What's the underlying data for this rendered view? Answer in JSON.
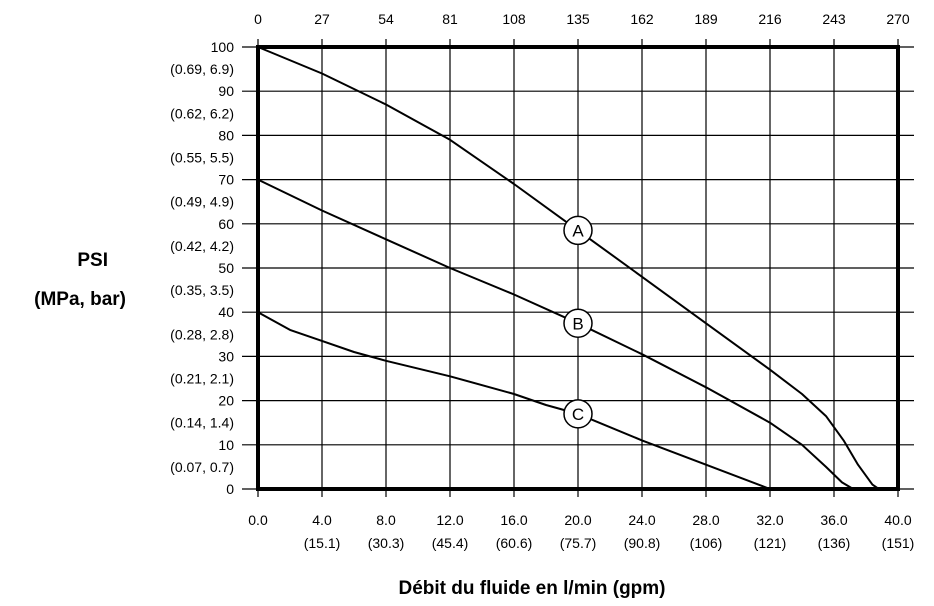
{
  "chart_data": {
    "type": "line",
    "title": "",
    "xlabel": "Débit du fluide en l/min (gpm)",
    "ylabel_line1": "PSI",
    "ylabel_line2": "(MPa, bar)",
    "xlim": [
      0,
      40
    ],
    "ylim": [
      0,
      100
    ],
    "grid": true,
    "x_ticks": [
      0,
      4,
      8,
      12,
      16,
      20,
      24,
      28,
      32,
      36,
      40
    ],
    "x_tick_labels": [
      "0.0",
      "4.0",
      "8.0",
      "12.0",
      "16.0",
      "20.0",
      "24.0",
      "28.0",
      "32.0",
      "36.0",
      "40.0"
    ],
    "x_tick_sublabels": [
      "",
      "(15.1)",
      "(30.3)",
      "(45.4)",
      "(60.6)",
      "(75.7)",
      "(90.8)",
      "(106)",
      "(121)",
      "(136)",
      "(151)"
    ],
    "top_axis_labels": [
      "0",
      "27",
      "54",
      "81",
      "108",
      "135",
      "162",
      "189",
      "216",
      "243",
      "270"
    ],
    "y_ticks": [
      0,
      10,
      20,
      30,
      40,
      50,
      60,
      70,
      80,
      90,
      100
    ],
    "y_tick_labels": [
      "0",
      "10",
      "20",
      "30",
      "40",
      "50",
      "60",
      "70",
      "80",
      "90",
      "100"
    ],
    "y_sub_labels": [
      {
        "y": 5,
        "text": "(0.07, 0.7)"
      },
      {
        "y": 15,
        "text": "(0.14, 1.4)"
      },
      {
        "y": 25,
        "text": "(0.21, 2.1)"
      },
      {
        "y": 35,
        "text": "(0.28, 2.8)"
      },
      {
        "y": 45,
        "text": "(0.35, 3.5)"
      },
      {
        "y": 55,
        "text": "(0.42, 4.2)"
      },
      {
        "y": 65,
        "text": "(0.49, 4.9)"
      },
      {
        "y": 75,
        "text": "(0.55, 5.5)"
      },
      {
        "y": 85,
        "text": "(0.62, 6.2)"
      },
      {
        "y": 95,
        "text": "(0.69, 6.9)"
      }
    ],
    "series": [
      {
        "name": "A",
        "label_at": [
          20,
          58.5
        ],
        "x": [
          0,
          4,
          8,
          12,
          16,
          20,
          24,
          28,
          32,
          34,
          35.5,
          36.6,
          37.5,
          38.4,
          38.8
        ],
        "y": [
          100,
          94,
          87,
          79,
          69,
          58.5,
          48,
          37.5,
          27,
          21.5,
          16.5,
          11,
          5.5,
          1,
          0
        ]
      },
      {
        "name": "B",
        "label_at": [
          20,
          37.5
        ],
        "x": [
          0,
          4,
          8,
          12,
          16,
          20,
          24,
          28,
          32,
          34,
          35.5,
          36.5,
          37.2
        ],
        "y": [
          70,
          63,
          56.5,
          50,
          44,
          37.5,
          30.5,
          23,
          15,
          10,
          5,
          1.5,
          0
        ]
      },
      {
        "name": "C",
        "label_at": [
          20,
          17
        ],
        "x": [
          0,
          2,
          4,
          6,
          8,
          12,
          16,
          18,
          20,
          24,
          28,
          32
        ],
        "y": [
          40,
          36,
          33.5,
          31,
          29,
          25.5,
          21.5,
          19,
          17,
          11,
          5.5,
          0
        ]
      }
    ]
  }
}
